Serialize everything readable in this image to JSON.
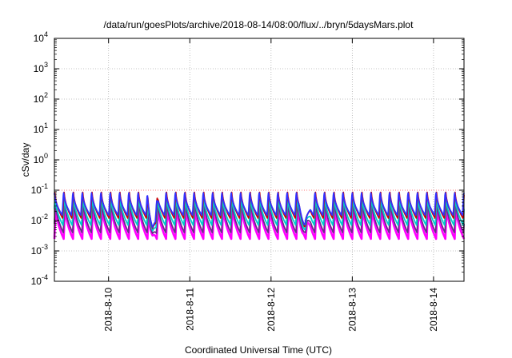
{
  "chart_data": {
    "type": "line",
    "title": "/data/run/goesPlots/archive/2018-08-14/08:00/flux/../bryn/5daysMars.plot",
    "xlabel": "Coordinated Universal Time (UTC)",
    "ylabel": "cSv/day",
    "yscale": "log",
    "ylim": [
      0.0001,
      10000
    ],
    "yticks": [
      {
        "base": "10",
        "exp": "-4"
      },
      {
        "base": "10",
        "exp": "-3"
      },
      {
        "base": "10",
        "exp": "-2"
      },
      {
        "base": "10",
        "exp": "-1"
      },
      {
        "base": "10",
        "exp": "0"
      },
      {
        "base": "10",
        "exp": "1"
      },
      {
        "base": "10",
        "exp": "2"
      },
      {
        "base": "10",
        "exp": "3"
      },
      {
        "base": "10",
        "exp": "4"
      }
    ],
    "xlim": [
      "2018-08-09T08:00",
      "2018-08-14T09:00"
    ],
    "xticks": [
      "2018-8-10",
      "2018-8-11",
      "2018-8-12",
      "2018-8-13",
      "2018-8-14"
    ],
    "grid": true,
    "reference_line": {
      "y": 0.1,
      "color": "#ff7777",
      "style": "dotted"
    },
    "period_hours": 2.75,
    "series": [
      {
        "color": "#cc0000",
        "peak": 0.11,
        "trough": 0.012
      },
      {
        "color": "#3030ff",
        "peak": 0.1,
        "trough": 0.015
      },
      {
        "color": "#ff00ff",
        "peak": 0.035,
        "trough": 0.0025
      },
      {
        "color": "#00cccc",
        "peak": 0.07,
        "trough": 0.007
      },
      {
        "color": "#6a2a8a",
        "peak": 0.05,
        "trough": 0.004
      }
    ],
    "dips": [
      {
        "x": "2018-08-10T13:00",
        "value": 0.003
      },
      {
        "x": "2018-08-12T10:00",
        "value": 0.0035
      }
    ]
  }
}
